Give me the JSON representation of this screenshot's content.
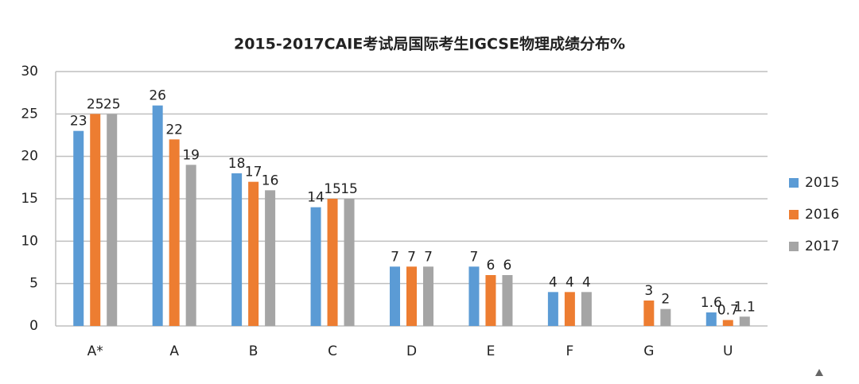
{
  "chart_data": {
    "type": "bar",
    "title": "2015-2017CAIE考试局国际考生IGCSE物理成绩分布%",
    "categories": [
      "A*",
      "A",
      "B",
      "C",
      "D",
      "E",
      "F",
      "G",
      "U"
    ],
    "series": [
      {
        "name": "2015",
        "color": "#5b9bd5",
        "values": [
          23,
          26,
          18,
          14,
          7,
          7,
          4,
          null,
          1.6
        ]
      },
      {
        "name": "2016",
        "color": "#ed7d31",
        "values": [
          25,
          22,
          17,
          15,
          7,
          6,
          4,
          3,
          0.7
        ]
      },
      {
        "name": "2017",
        "color": "#a5a5a5",
        "values": [
          25,
          19,
          16,
          15,
          7,
          6,
          4,
          2,
          1.1
        ]
      }
    ],
    "ylim": [
      0,
      30
    ],
    "yticks": [
      0,
      5,
      10,
      15,
      20,
      25,
      30
    ],
    "grid": true,
    "legend": "right"
  }
}
